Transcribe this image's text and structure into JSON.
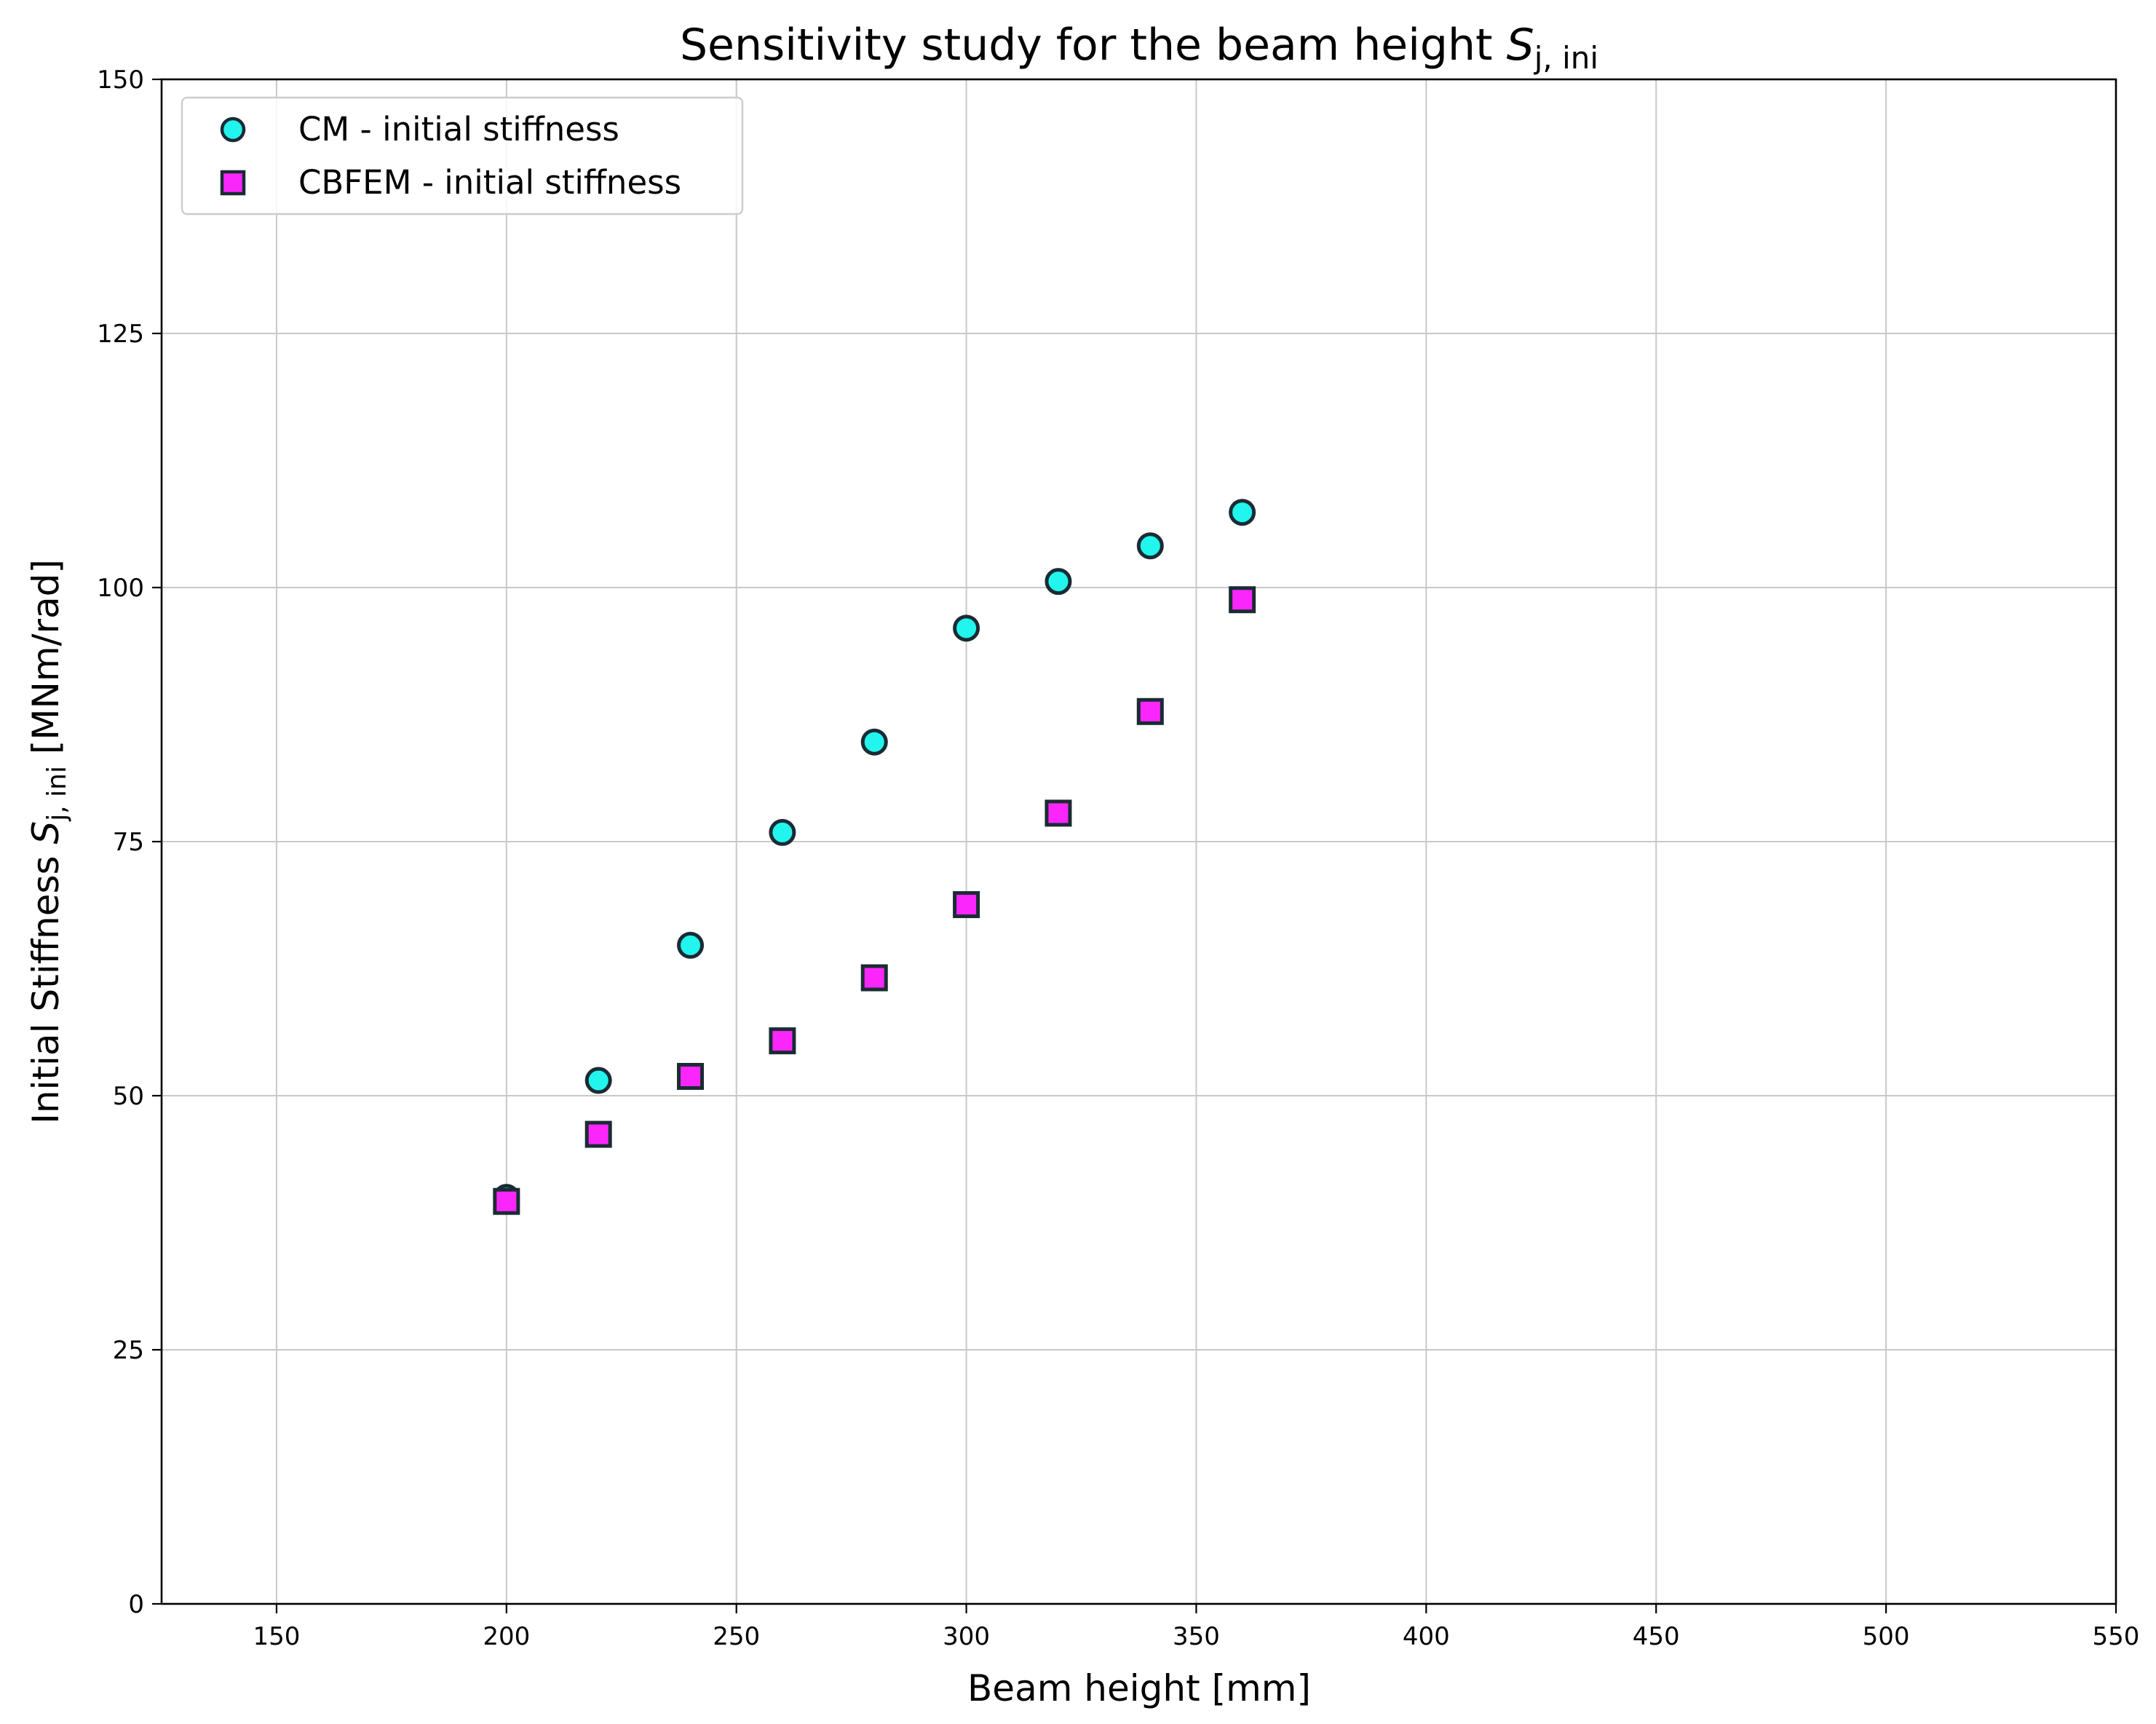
{
  "chart_data": {
    "type": "scatter",
    "title": {
      "main": "Sensitivity study for the beam height ",
      "symbol": "S",
      "subscript": "j, ini"
    },
    "xlabel": "Beam height [mm]",
    "ylabel": {
      "prefix": "Initial Stiffness ",
      "symbol": "S",
      "subscript": "j, ini",
      "suffix": " [MNm/rad]"
    },
    "xlim": [
      125,
      550
    ],
    "ylim": [
      0,
      150
    ],
    "xticks": [
      150,
      200,
      250,
      300,
      350,
      400,
      450,
      500,
      550
    ],
    "yticks": [
      0,
      25,
      50,
      75,
      100,
      125,
      150
    ],
    "grid": true,
    "legend_position": "top-left",
    "series": [
      {
        "name": "CM - initial stiffness",
        "marker": "circle",
        "color": "#22f5ee",
        "edge_color": "#1a2b33",
        "x": [
          200,
          220,
          240,
          260,
          280,
          300,
          320,
          340,
          360
        ],
        "y": [
          40.0,
          51.5,
          64.8,
          75.9,
          84.8,
          96.0,
          100.6,
          104.1,
          107.4
        ]
      },
      {
        "name": "CBFEM - initial stiffness",
        "marker": "square",
        "color": "#fb26fb",
        "edge_color": "#1a2b33",
        "x": [
          200,
          220,
          240,
          260,
          280,
          300,
          320,
          340,
          360
        ],
        "y": [
          39.6,
          46.2,
          51.9,
          55.4,
          61.6,
          68.8,
          77.8,
          87.8,
          98.8
        ]
      }
    ]
  }
}
